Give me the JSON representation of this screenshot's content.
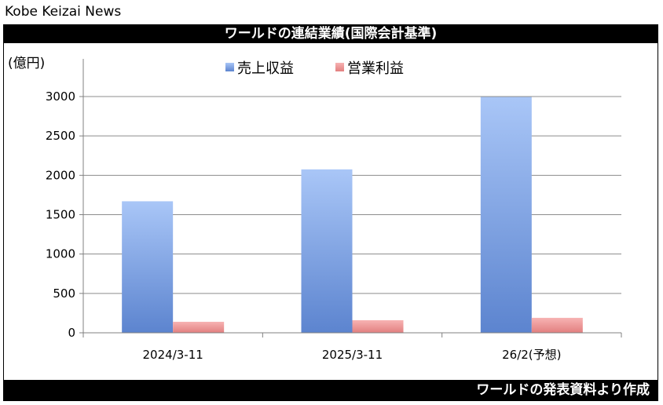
{
  "header": {
    "source": "Kobe Keizai News"
  },
  "title": "ワールドの連結業績(国際会計基準)",
  "footer": "ワールドの発表資料より作成",
  "chart_data": {
    "type": "bar",
    "unit_label": "(億円)",
    "categories": [
      "2024/3-11",
      "2025/3-11",
      "26/2(予想)"
    ],
    "series": [
      {
        "name": "売上収益",
        "values": [
          1670,
          2075,
          2995
        ],
        "color": "#6d95de"
      },
      {
        "name": "営業利益",
        "values": [
          140,
          160,
          190
        ],
        "color": "#e88b8b"
      }
    ],
    "ylim": [
      0,
      3000
    ],
    "yticks": [
      0,
      500,
      1000,
      1500,
      2000,
      2500,
      3000
    ],
    "grid": true,
    "legend": "top-center"
  }
}
